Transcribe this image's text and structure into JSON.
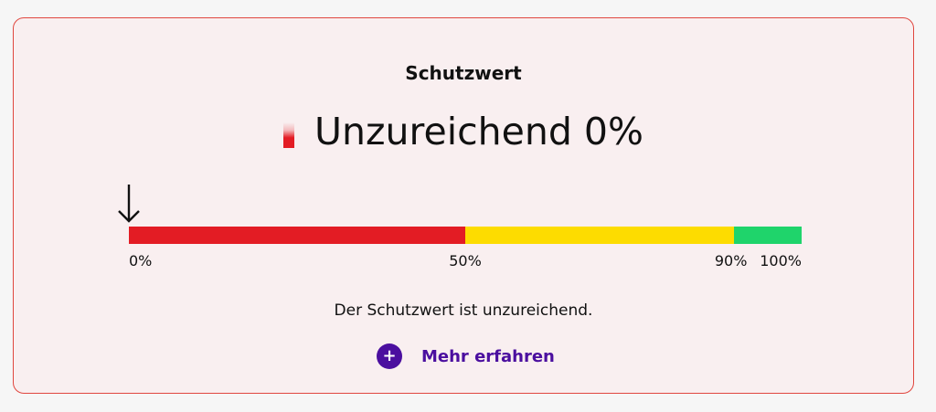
{
  "card": {
    "title": "Schutzwert",
    "status": {
      "label": "Unzureichend",
      "percent_text": "0%",
      "value": 0,
      "color": "#e31c24"
    },
    "scale": {
      "segments": [
        {
          "from": 0,
          "to": 50,
          "color": "#e31c24"
        },
        {
          "from": 50,
          "to": 90,
          "color": "#fddc00"
        },
        {
          "from": 90,
          "to": 100,
          "color": "#1fd46b"
        }
      ],
      "ticks": [
        {
          "value": 0,
          "label": "0%"
        },
        {
          "value": 50,
          "label": "50%"
        },
        {
          "value": 90,
          "label": "90%"
        },
        {
          "value": 100,
          "label": "100%"
        }
      ],
      "marker_value": 0
    },
    "message": "Der Schutzwert ist unzureichend.",
    "more_link": {
      "label": "Mehr erfahren",
      "icon": "plus-circle-icon"
    }
  }
}
